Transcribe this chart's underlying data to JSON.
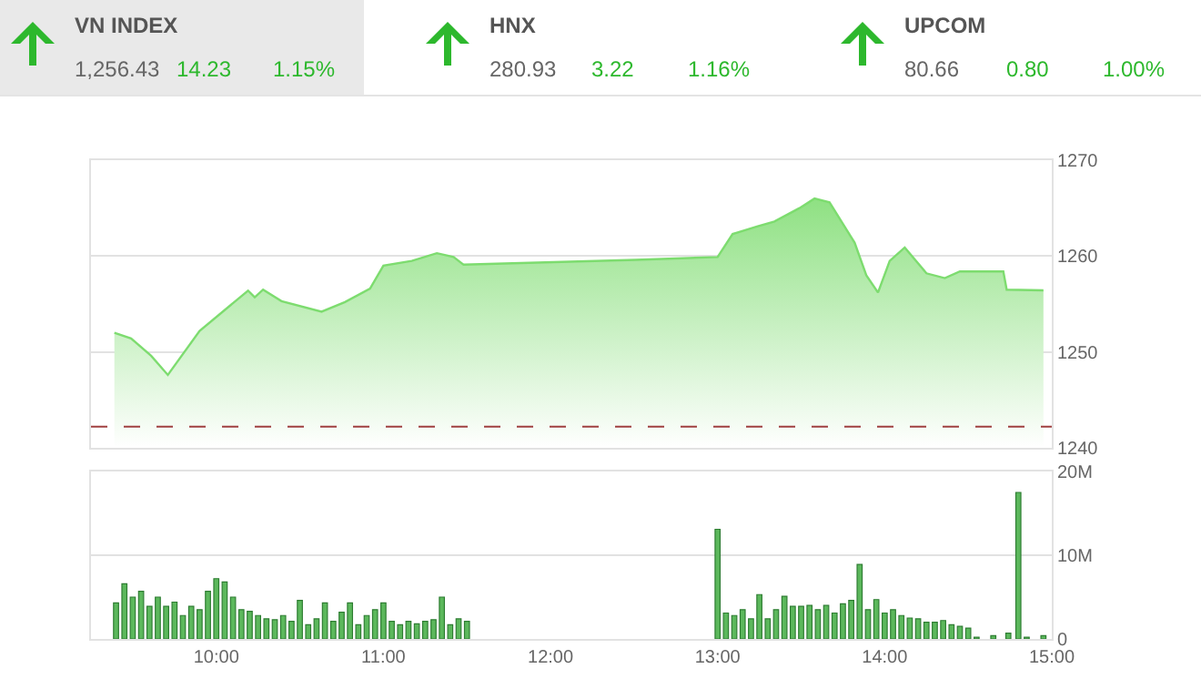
{
  "chart_data": [
    {
      "type": "other",
      "categories": [
        "VN INDEX",
        "HNX",
        "UPCOM"
      ],
      "series": [
        {
          "values": [
            1256.43,
            280.93,
            80.66
          ],
          "value_labels": [
            "1,256.43",
            "280.93",
            "80.66"
          ]
        },
        {
          "color": "#2db82d",
          "values": [
            14.23,
            3.22,
            0.8
          ],
          "value_labels": [
            "14.23",
            "3.22",
            "0.80"
          ]
        },
        {
          "color": "#2db82d",
          "values": [
            1.15,
            1.16,
            1.0
          ],
          "value_labels": [
            "1.15%",
            "1.16%",
            "1.00%"
          ]
        }
      ]
    },
    {
      "type": "area",
      "x": [
        9.39,
        9.49,
        9.61,
        9.71,
        9.9,
        10.19,
        10.23,
        10.28,
        10.39,
        10.63,
        10.77,
        10.92,
        11.0,
        11.17,
        11.32,
        11.42,
        11.48,
        12.51,
        13.0,
        13.09,
        13.24,
        13.34,
        13.49,
        13.58,
        13.67,
        13.82,
        13.89,
        13.96,
        14.03,
        14.12,
        14.25,
        14.36,
        14.45,
        14.71,
        14.73,
        14.95
      ],
      "series": [
        {
          "color": "#7ddc6f",
          "values": [
            1252.0,
            1251.4,
            1249.6,
            1247.6,
            1252.2,
            1256.4,
            1255.7,
            1256.5,
            1255.3,
            1254.2,
            1255.2,
            1256.6,
            1259.0,
            1259.5,
            1260.3,
            1259.9,
            1259.1,
            1259.6,
            1259.9,
            1262.3,
            1263.1,
            1263.6,
            1265.0,
            1266.0,
            1265.6,
            1261.4,
            1258.0,
            1256.2,
            1259.5,
            1260.9,
            1258.2,
            1257.7,
            1258.4,
            1258.4,
            1256.5,
            1256.43
          ]
        }
      ],
      "xlim": [
        9.25,
        15
      ],
      "xticks": [
        {
          "value": 10,
          "label": null
        },
        {
          "value": 11,
          "label": null
        },
        {
          "value": 12,
          "label": null
        },
        {
          "value": 13,
          "label": null
        },
        {
          "value": 14,
          "label": null
        },
        {
          "value": 15,
          "label": null
        }
      ],
      "ylim": [
        1240,
        1270
      ],
      "yticks": [
        1240,
        1250,
        1260,
        1270
      ],
      "grid": "y",
      "tick_labels": "y",
      "ref_lines": [
        {
          "axis": "y",
          "value": 1242.2,
          "color": "#a04040",
          "line_style": "dashed"
        }
      ]
    },
    {
      "type": "bar",
      "x": [
        9.4,
        9.45,
        9.5,
        9.55,
        9.6,
        9.65,
        9.7,
        9.75,
        9.8,
        9.85,
        9.9,
        9.95,
        10.0,
        10.05,
        10.1,
        10.15,
        10.2,
        10.25,
        10.3,
        10.35,
        10.4,
        10.45,
        10.5,
        10.55,
        10.6,
        10.65,
        10.7,
        10.75,
        10.8,
        10.85,
        10.9,
        10.95,
        11.0,
        11.05,
        11.1,
        11.15,
        11.2,
        11.25,
        11.3,
        11.35,
        11.4,
        11.45,
        11.5,
        13.0,
        13.05,
        13.1,
        13.15,
        13.2,
        13.25,
        13.3,
        13.35,
        13.4,
        13.45,
        13.5,
        13.55,
        13.6,
        13.65,
        13.7,
        13.75,
        13.8,
        13.85,
        13.9,
        13.95,
        14.0,
        14.05,
        14.1,
        14.15,
        14.2,
        14.25,
        14.3,
        14.35,
        14.4,
        14.45,
        14.5,
        14.55,
        14.65,
        14.74,
        14.8,
        14.85,
        14.95
      ],
      "series": [
        {
          "color": "#5cb85c",
          "values": [
            4.3,
            6.6,
            5.0,
            5.7,
            3.9,
            5.0,
            3.9,
            4.4,
            2.8,
            3.9,
            3.5,
            5.7,
            7.2,
            6.8,
            5.0,
            3.5,
            3.3,
            2.8,
            2.4,
            2.3,
            2.8,
            2.1,
            4.6,
            1.7,
            2.4,
            4.3,
            2.1,
            3.2,
            4.3,
            1.7,
            2.8,
            3.5,
            4.3,
            2.1,
            1.7,
            2.1,
            1.8,
            2.1,
            2.3,
            5.0,
            1.7,
            2.4,
            2.1,
            13.1,
            3.1,
            2.8,
            3.5,
            2.4,
            5.3,
            2.4,
            3.5,
            5.1,
            3.9,
            3.9,
            4.0,
            3.5,
            4.0,
            3.1,
            4.2,
            4.6,
            8.9,
            3.5,
            4.7,
            3.1,
            3.5,
            2.8,
            2.5,
            2.4,
            2.0,
            2.0,
            2.2,
            1.7,
            1.5,
            1.3,
            0.2,
            0.4,
            0.7,
            17.5,
            0.2,
            0.4
          ]
        }
      ],
      "xlim": [
        9.25,
        15
      ],
      "xticks": [
        {
          "value": 10,
          "label": "10:00"
        },
        {
          "value": 11,
          "label": "11:00"
        },
        {
          "value": 12,
          "label": "12:00"
        },
        {
          "value": 13,
          "label": "13:00"
        },
        {
          "value": 14,
          "label": "14:00"
        },
        {
          "value": 15,
          "label": "15:00"
        }
      ],
      "ylim": [
        0,
        20
      ],
      "yticks": [
        0,
        {
          "value": 10,
          "label": "10M"
        },
        {
          "value": 20,
          "label": "20M"
        }
      ],
      "grid": "y"
    }
  ]
}
